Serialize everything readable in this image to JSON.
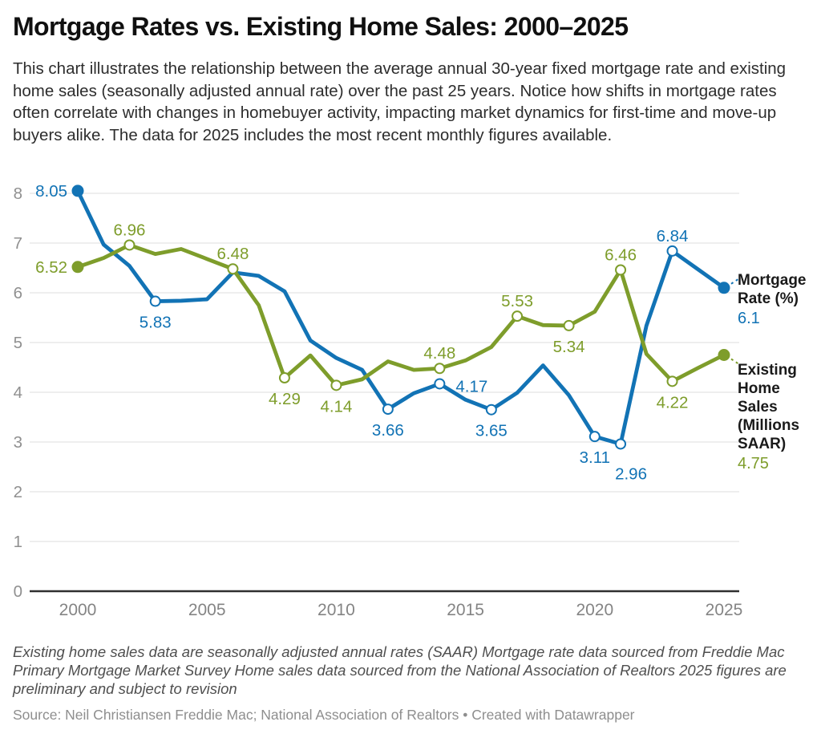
{
  "header": {
    "title": "Mortgage Rates vs. Existing Home Sales: 2000–2025",
    "description": "This chart illustrates the relationship between the average annual 30-year fixed mortgage rate and existing home sales (seasonally adjusted annual rate) over the past 25 years. Notice how shifts in mortgage rates often correlate with changes in homebuyer activity, impacting market dynamics for first-time and move-up buyers alike. The data for 2025 includes the most recent monthly figures available."
  },
  "footer": {
    "notes": "Existing home sales data are seasonally adjusted annual rates (SAAR) Mortgage rate data sourced from Freddie Mac Primary Mortgage Market Survey Home sales data sourced from the National Association of Realtors 2025 figures are preliminary and subject to revision",
    "source": "Source: Neil Christiansen Freddie Mac; National Association of Realtors • Created with Datawrapper"
  },
  "chart_data": {
    "type": "line",
    "title": "Mortgage Rates vs. Existing Home Sales: 2000–2025",
    "xlabel": "",
    "ylabel": "",
    "ylim": [
      0,
      8
    ],
    "grid": "horizontal",
    "legend_position": "right",
    "x": [
      2000,
      2001,
      2002,
      2003,
      2004,
      2005,
      2006,
      2007,
      2008,
      2009,
      2010,
      2011,
      2012,
      2013,
      2014,
      2015,
      2016,
      2017,
      2018,
      2019,
      2020,
      2021,
      2022,
      2023,
      2024,
      2025
    ],
    "x_ticks": [
      2000,
      2005,
      2010,
      2015,
      2020,
      2025
    ],
    "y_ticks": [
      0,
      1,
      2,
      3,
      4,
      5,
      6,
      7,
      8
    ],
    "series": [
      {
        "name": "Mortgage Rate (%)",
        "color": "#1273b5",
        "end_label": "6.1",
        "values": [
          8.05,
          6.97,
          6.54,
          5.83,
          5.84,
          5.87,
          6.41,
          6.34,
          6.03,
          5.04,
          4.69,
          4.45,
          3.66,
          3.98,
          4.17,
          3.85,
          3.65,
          3.99,
          4.54,
          3.94,
          3.11,
          2.96,
          5.34,
          6.84,
          6.47,
          6.1
        ]
      },
      {
        "name": "Existing Home Sales (Millions SAAR)",
        "color": "#7e9d2b",
        "end_label": "4.75",
        "values": [
          6.52,
          6.7,
          6.96,
          6.78,
          6.88,
          6.68,
          6.48,
          5.75,
          4.29,
          4.74,
          4.14,
          4.26,
          4.62,
          4.45,
          4.48,
          4.64,
          4.91,
          5.53,
          5.35,
          5.34,
          5.62,
          6.46,
          4.77,
          4.22,
          4.49,
          4.75
        ]
      }
    ],
    "labeled_points": [
      {
        "series": 0,
        "year": 2000,
        "value": 8.05,
        "text": "8.05",
        "marker": "dot",
        "pos": "left"
      },
      {
        "series": 0,
        "year": 2003,
        "value": 5.83,
        "text": "5.83",
        "marker": "ring",
        "pos": "below"
      },
      {
        "series": 0,
        "year": 2012,
        "value": 3.66,
        "text": "3.66",
        "marker": "ring",
        "pos": "below"
      },
      {
        "series": 0,
        "year": 2014,
        "value": 4.17,
        "text": "4.17",
        "marker": "ring",
        "pos": "right"
      },
      {
        "series": 0,
        "year": 2016,
        "value": 3.65,
        "text": "3.65",
        "marker": "ring",
        "pos": "below"
      },
      {
        "series": 0,
        "year": 2020,
        "value": 3.11,
        "text": "3.11",
        "marker": "ring",
        "pos": "below"
      },
      {
        "series": 0,
        "year": 2021,
        "value": 2.96,
        "text": "2.96",
        "marker": "ring",
        "pos": "below-right"
      },
      {
        "series": 0,
        "year": 2023,
        "value": 6.84,
        "text": "6.84",
        "marker": "ring",
        "pos": "above"
      },
      {
        "series": 0,
        "year": 2025,
        "value": 6.1,
        "text": "",
        "marker": "dot",
        "pos": "none"
      },
      {
        "series": 1,
        "year": 2000,
        "value": 6.52,
        "text": "6.52",
        "marker": "dot",
        "pos": "left"
      },
      {
        "series": 1,
        "year": 2002,
        "value": 6.96,
        "text": "6.96",
        "marker": "ring",
        "pos": "above"
      },
      {
        "series": 1,
        "year": 2006,
        "value": 6.48,
        "text": "6.48",
        "marker": "ring",
        "pos": "above"
      },
      {
        "series": 1,
        "year": 2008,
        "value": 4.29,
        "text": "4.29",
        "marker": "ring",
        "pos": "below"
      },
      {
        "series": 1,
        "year": 2010,
        "value": 4.14,
        "text": "4.14",
        "marker": "ring",
        "pos": "below"
      },
      {
        "series": 1,
        "year": 2014,
        "value": 4.48,
        "text": "4.48",
        "marker": "ring",
        "pos": "above"
      },
      {
        "series": 1,
        "year": 2017,
        "value": 5.53,
        "text": "5.53",
        "marker": "ring",
        "pos": "above"
      },
      {
        "series": 1,
        "year": 2019,
        "value": 5.34,
        "text": "5.34",
        "marker": "ring",
        "pos": "below"
      },
      {
        "series": 1,
        "year": 2021,
        "value": 6.46,
        "text": "6.46",
        "marker": "ring",
        "pos": "above"
      },
      {
        "series": 1,
        "year": 2023,
        "value": 4.22,
        "text": "4.22",
        "marker": "ring",
        "pos": "below"
      },
      {
        "series": 1,
        "year": 2025,
        "value": 4.75,
        "text": "",
        "marker": "dot",
        "pos": "none"
      }
    ],
    "colors": {
      "grid": "#e4e4e4",
      "baseline": "#2f2f2f",
      "y_tick_text": "#909090",
      "x_tick_text": "#848484"
    }
  }
}
